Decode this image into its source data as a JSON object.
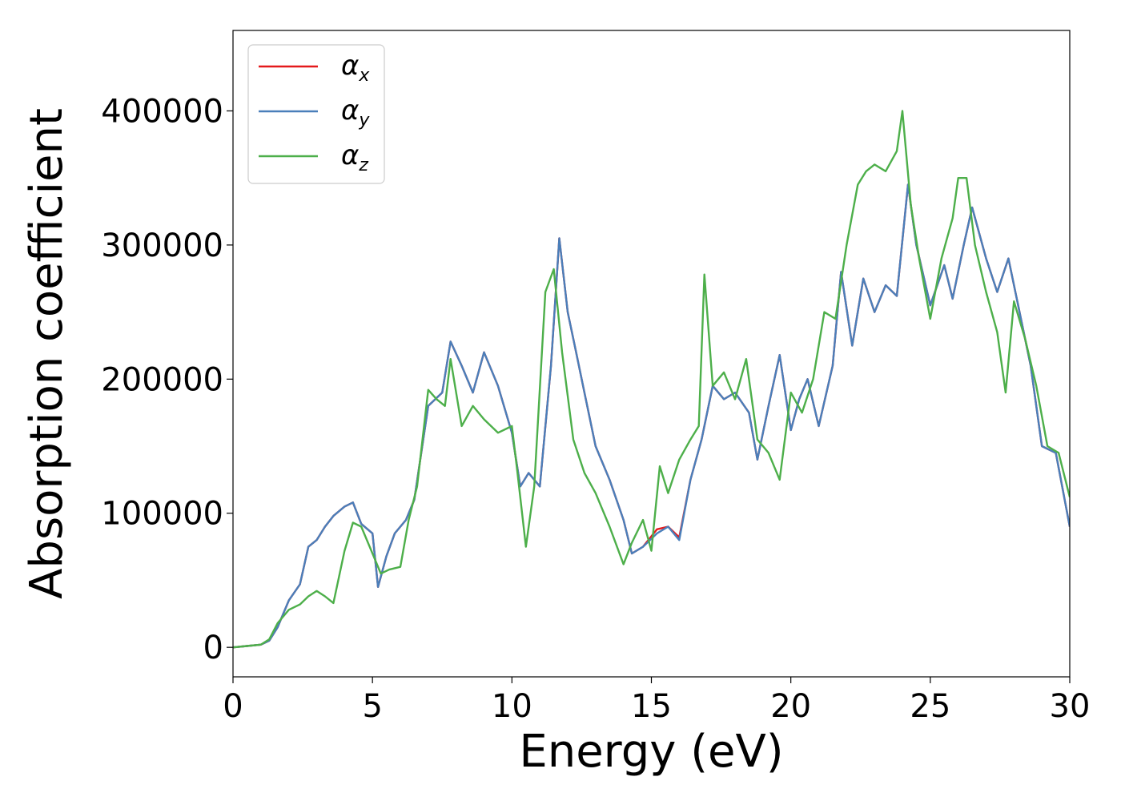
{
  "chart_data": {
    "type": "line",
    "xlabel": "Energy (eV)",
    "ylabel": "Absorption coefficient",
    "xlim": [
      0,
      30
    ],
    "ylim": [
      -22000,
      460000
    ],
    "xticks": [
      0,
      5,
      10,
      15,
      20,
      25,
      30
    ],
    "yticks": [
      0,
      100000,
      200000,
      300000,
      400000
    ],
    "grid": false,
    "legend_position": "top-left",
    "series": [
      {
        "name": "α_x",
        "legend_base": "α",
        "legend_sub": "x",
        "color": "#e41a1c",
        "x": [
          0,
          0.5,
          1,
          1.3,
          1.6,
          2,
          2.4,
          2.7,
          3,
          3.3,
          3.6,
          4,
          4.3,
          4.6,
          5,
          5.2,
          5.5,
          5.8,
          6.2,
          6.5,
          7,
          7.5,
          7.8,
          8.2,
          8.6,
          9,
          9.5,
          10,
          10.3,
          10.6,
          11,
          11.4,
          11.7,
          12,
          12.3,
          12.6,
          13,
          13.5,
          14,
          14.3,
          14.7,
          15.2,
          15.6,
          16,
          16.4,
          16.8,
          17.2,
          17.6,
          18,
          18.5,
          18.8,
          19.2,
          19.6,
          20,
          20.3,
          20.6,
          21,
          21.5,
          21.8,
          22.2,
          22.6,
          23,
          23.4,
          23.8,
          24.2,
          24.5,
          25,
          25.5,
          25.8,
          26.2,
          26.5,
          27,
          27.4,
          27.8,
          28.2,
          28.6,
          29,
          29.5,
          30
        ],
        "y": [
          0,
          1000,
          2000,
          5000,
          15000,
          35000,
          47000,
          75000,
          80000,
          90000,
          98000,
          105000,
          108000,
          92000,
          85000,
          45000,
          68000,
          85000,
          95000,
          110000,
          180000,
          190000,
          228000,
          210000,
          190000,
          220000,
          195000,
          160000,
          120000,
          130000,
          120000,
          210000,
          305000,
          250000,
          220000,
          190000,
          150000,
          125000,
          95000,
          70000,
          75000,
          88000,
          90000,
          82000,
          125000,
          155000,
          195000,
          185000,
          190000,
          175000,
          140000,
          180000,
          218000,
          162000,
          185000,
          200000,
          165000,
          210000,
          280000,
          225000,
          275000,
          250000,
          270000,
          262000,
          345000,
          300000,
          255000,
          285000,
          260000,
          300000,
          328000,
          290000,
          265000,
          290000,
          250000,
          210000,
          150000,
          145000,
          90000
        ]
      },
      {
        "name": "α_y",
        "legend_base": "α",
        "legend_sub": "y",
        "color": "#4a7fba",
        "x": [
          0,
          0.5,
          1,
          1.3,
          1.6,
          2,
          2.4,
          2.7,
          3,
          3.3,
          3.6,
          4,
          4.3,
          4.6,
          5,
          5.2,
          5.5,
          5.8,
          6.2,
          6.5,
          7,
          7.5,
          7.8,
          8.2,
          8.6,
          9,
          9.5,
          10,
          10.3,
          10.6,
          11,
          11.4,
          11.7,
          12,
          12.3,
          12.6,
          13,
          13.5,
          14,
          14.3,
          14.7,
          15.2,
          15.6,
          16,
          16.4,
          16.8,
          17.2,
          17.6,
          18,
          18.5,
          18.8,
          19.2,
          19.6,
          20,
          20.3,
          20.6,
          21,
          21.5,
          21.8,
          22.2,
          22.6,
          23,
          23.4,
          23.8,
          24.2,
          24.5,
          25,
          25.5,
          25.8,
          26.2,
          26.5,
          27,
          27.4,
          27.8,
          28.2,
          28.6,
          29,
          29.5,
          30
        ],
        "y": [
          0,
          1000,
          2000,
          5000,
          15000,
          35000,
          47000,
          75000,
          80000,
          90000,
          98000,
          105000,
          108000,
          92000,
          85000,
          45000,
          68000,
          85000,
          95000,
          110000,
          180000,
          190000,
          228000,
          210000,
          190000,
          220000,
          195000,
          160000,
          120000,
          130000,
          120000,
          210000,
          305000,
          250000,
          220000,
          190000,
          150000,
          125000,
          95000,
          70000,
          75000,
          85000,
          90000,
          80000,
          125000,
          155000,
          195000,
          185000,
          190000,
          175000,
          140000,
          180000,
          218000,
          162000,
          185000,
          200000,
          165000,
          210000,
          280000,
          225000,
          275000,
          250000,
          270000,
          262000,
          345000,
          300000,
          255000,
          285000,
          260000,
          300000,
          328000,
          290000,
          265000,
          290000,
          250000,
          210000,
          150000,
          145000,
          90000
        ]
      },
      {
        "name": "α_z",
        "legend_base": "α",
        "legend_sub": "z",
        "color": "#4daf4a",
        "x": [
          0,
          0.5,
          1,
          1.3,
          1.6,
          2,
          2.4,
          2.7,
          3,
          3.3,
          3.6,
          4,
          4.3,
          4.6,
          5,
          5.3,
          5.6,
          6,
          6.3,
          6.6,
          7,
          7.3,
          7.6,
          7.8,
          8.2,
          8.6,
          9,
          9.5,
          10,
          10.2,
          10.5,
          10.8,
          11.2,
          11.5,
          11.8,
          12.2,
          12.6,
          13,
          13.5,
          14,
          14.3,
          14.7,
          15,
          15.3,
          15.6,
          16,
          16.4,
          16.7,
          16.9,
          17.2,
          17.6,
          18,
          18.4,
          18.8,
          19.2,
          19.6,
          20,
          20.4,
          20.8,
          21.2,
          21.6,
          22,
          22.4,
          22.7,
          23,
          23.4,
          23.8,
          24,
          24.3,
          24.6,
          25,
          25.4,
          25.8,
          26,
          26.3,
          26.6,
          27,
          27.4,
          27.7,
          28,
          28.4,
          28.8,
          29.2,
          29.6,
          30
        ],
        "y": [
          0,
          1000,
          2000,
          6000,
          18000,
          28000,
          32000,
          38000,
          42000,
          38000,
          33000,
          72000,
          93000,
          90000,
          70000,
          55000,
          58000,
          60000,
          95000,
          120000,
          192000,
          185000,
          180000,
          215000,
          165000,
          180000,
          170000,
          160000,
          165000,
          130000,
          75000,
          120000,
          265000,
          282000,
          220000,
          155000,
          130000,
          115000,
          90000,
          62000,
          78000,
          95000,
          72000,
          135000,
          115000,
          140000,
          155000,
          165000,
          278000,
          195000,
          205000,
          185000,
          215000,
          155000,
          145000,
          125000,
          190000,
          175000,
          200000,
          250000,
          245000,
          300000,
          345000,
          355000,
          360000,
          355000,
          370000,
          400000,
          330000,
          290000,
          245000,
          290000,
          320000,
          350000,
          350000,
          300000,
          265000,
          235000,
          190000,
          258000,
          230000,
          195000,
          150000,
          145000,
          112000
        ]
      }
    ]
  }
}
